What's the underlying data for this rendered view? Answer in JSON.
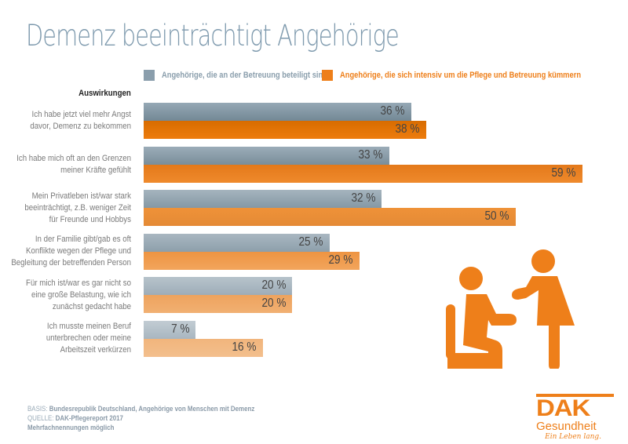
{
  "chart_data": {
    "type": "bar",
    "orientation": "horizontal",
    "title": "Demenz beeinträchtigt Angehörige",
    "category_header": "Auswirkungen",
    "categories": [
      "Ich habe jetzt viel mehr Angst davor, Demenz zu bekommen",
      "Ich habe mich oft an den Grenzen meiner Kräfte gefühlt",
      "Mein Privatleben ist/war stark beeinträchtigt, z.B. weniger Zeit für Freunde und Hobbys",
      "In der Familie gibt/gab es oft Konflikte wegen der Pflege und Begleitung der betreffenden Person",
      "Für mich ist/war es gar nicht so eine große Belastung, wie ich zunächst gedacht habe",
      "Ich musste meinen Beruf unterbrechen oder meine Arbeitszeit verkürzen"
    ],
    "category_lines": [
      [
        "Ich habe jetzt viel mehr Angst",
        "davor, Demenz zu bekommen"
      ],
      [
        "Ich habe mich oft an den Grenzen",
        "meiner Kräfte gefühlt"
      ],
      [
        "Mein Privatleben ist/war stark",
        "beeinträchtigt, z.B. weniger Zeit",
        "für Freunde und Hobbys"
      ],
      [
        "In der Familie gibt/gab es oft",
        "Konflikte wegen der Pflege und",
        "Begleitung der betreffenden Person"
      ],
      [
        "Für mich ist/war es gar nicht so",
        "eine große Belastung, wie ich",
        "zunächst gedacht habe"
      ],
      [
        "Ich musste meinen Beruf",
        "unterbrechen oder meine",
        "Arbeitszeit verkürzen"
      ]
    ],
    "series": [
      {
        "name": "Angehörige, die an der Betreuung beteiligt sind",
        "color": "#8a9eac",
        "values": [
          36,
          33,
          32,
          25,
          20,
          7
        ]
      },
      {
        "name": "Angehörige, die sich intensiv um die Pflege und Betreuung kümmern",
        "color": "#ee7f1a",
        "values": [
          38,
          59,
          50,
          29,
          20,
          16
        ]
      }
    ],
    "value_suffix": " %",
    "xlim": [
      0,
      60
    ],
    "grid": false,
    "legend_position": "top"
  },
  "footer": {
    "basis_label": "BASIS:",
    "basis_text": "Bundesrepublik Deutschland, Angehörige von Menschen mit Demenz",
    "source_label": "QUELLE:",
    "source_text": "DAK-Pflegereport 2017",
    "note": "Mehrfachnennungen möglich"
  },
  "logo": {
    "brand": "DAK",
    "name": "Gesundheit",
    "slogan": "Ein Leben lang."
  },
  "colors": {
    "title": "#7d99ad",
    "grey_series": "#8a9eac",
    "orange_series": "#ee7f1a"
  }
}
